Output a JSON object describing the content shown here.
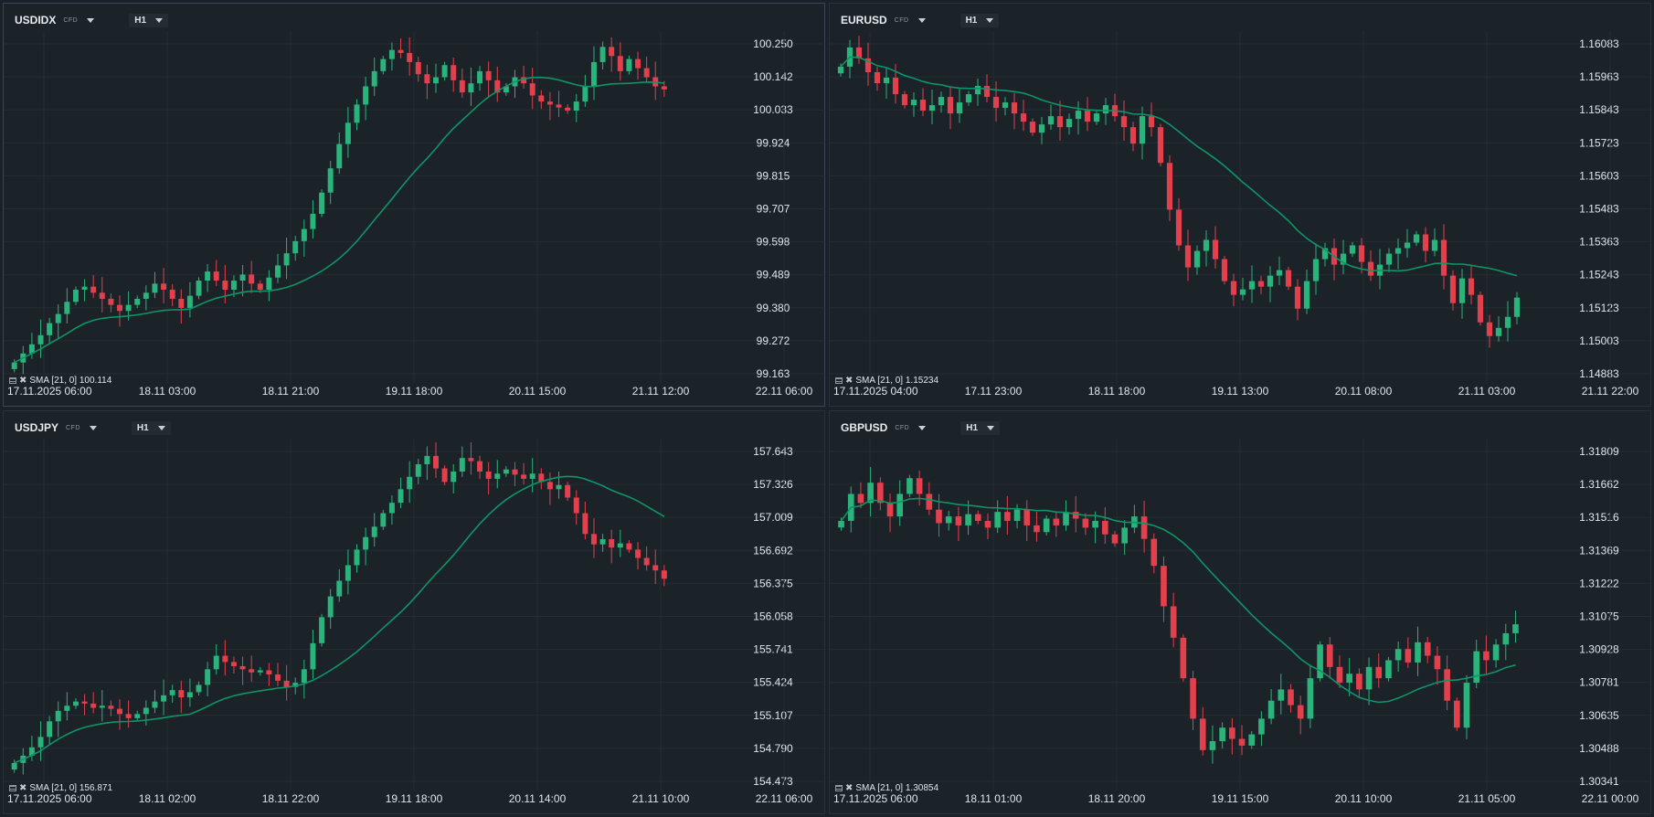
{
  "colors": {
    "up": "#2ab37a",
    "down": "#e3404d",
    "sma": "#0f9468",
    "grid": "#242d34"
  },
  "panels": [
    {
      "symbol": "USDIDX",
      "badge": "CFD",
      "timeframe": "H1",
      "indicator": "SMA [21, 0] 100.114",
      "price_ticks": [
        "100.250",
        "100.142",
        "100.033",
        "99.924",
        "99.815",
        "99.707",
        "99.598",
        "99.489",
        "99.380",
        "99.272",
        "99.163"
      ],
      "time_ticks": [
        "17.11.2025  06:00",
        "18.11  03:00",
        "18.11  21:00",
        "19.11  18:00",
        "20.11  15:00",
        "21.11  12:00",
        "22.11  06:00"
      ],
      "chart_data": {
        "type": "candlestick",
        "ylim": [
          99.163,
          100.25
        ],
        "close": [
          99.2,
          99.23,
          99.26,
          99.29,
          99.33,
          99.36,
          99.4,
          99.44,
          99.45,
          99.43,
          99.41,
          99.39,
          99.37,
          99.39,
          99.41,
          99.43,
          99.46,
          99.44,
          99.41,
          99.38,
          99.42,
          99.47,
          99.5,
          99.47,
          99.44,
          99.47,
          99.49,
          99.46,
          99.44,
          99.48,
          99.52,
          99.56,
          99.6,
          99.64,
          99.69,
          99.76,
          99.84,
          99.92,
          99.99,
          100.05,
          100.11,
          100.16,
          100.2,
          100.23,
          100.22,
          100.19,
          100.15,
          100.12,
          100.14,
          100.18,
          100.13,
          100.09,
          100.12,
          100.16,
          100.13,
          100.09,
          100.11,
          100.14,
          100.12,
          100.08,
          100.06,
          100.05,
          100.04,
          100.03,
          100.06,
          100.11,
          100.19,
          100.24,
          100.21,
          100.16,
          100.2,
          100.17,
          100.14,
          100.11,
          100.1
        ]
      }
    },
    {
      "symbol": "EURUSD",
      "badge": "CFD",
      "timeframe": "H1",
      "indicator": "SMA [21, 0] 1.15234",
      "price_ticks": [
        "1.16083",
        "1.15963",
        "1.15843",
        "1.15723",
        "1.15603",
        "1.15483",
        "1.15363",
        "1.15243",
        "1.15123",
        "1.15003",
        "1.14883"
      ],
      "time_ticks": [
        "17.11.2025  04:00",
        "17.11  23:00",
        "18.11  18:00",
        "19.11  13:00",
        "20.11  08:00",
        "21.11  03:00",
        "21.11  22:00"
      ],
      "chart_data": {
        "type": "candlestick",
        "ylim": [
          1.14883,
          1.16083
        ],
        "close": [
          1.16,
          1.1607,
          1.1603,
          1.1598,
          1.1594,
          1.1596,
          1.159,
          1.1586,
          1.1588,
          1.1584,
          1.1586,
          1.1589,
          1.1583,
          1.1587,
          1.159,
          1.1593,
          1.1589,
          1.1585,
          1.1587,
          1.1583,
          1.158,
          1.1576,
          1.1579,
          1.1582,
          1.1578,
          1.1581,
          1.1584,
          1.158,
          1.1583,
          1.1586,
          1.1582,
          1.1578,
          1.1572,
          1.1582,
          1.1578,
          1.1565,
          1.1548,
          1.1535,
          1.1527,
          1.1533,
          1.1537,
          1.153,
          1.1522,
          1.1517,
          1.1519,
          1.1522,
          1.152,
          1.1524,
          1.1526,
          1.152,
          1.1512,
          1.1522,
          1.153,
          1.1534,
          1.1528,
          1.1532,
          1.1535,
          1.1529,
          1.1524,
          1.1528,
          1.1532,
          1.1534,
          1.1536,
          1.1539,
          1.1533,
          1.1537,
          1.1524,
          1.1514,
          1.1523,
          1.1517,
          1.1507,
          1.1502,
          1.1505,
          1.1509,
          1.1516
        ]
      }
    },
    {
      "symbol": "USDJPY",
      "badge": "CFD",
      "timeframe": "H1",
      "indicator": "SMA [21, 0] 156.871",
      "price_ticks": [
        "157.643",
        "157.326",
        "157.009",
        "156.692",
        "156.375",
        "156.058",
        "155.741",
        "155.424",
        "155.107",
        "154.790",
        "154.473"
      ],
      "time_ticks": [
        "17.11.2025  06:00",
        "18.11  02:00",
        "18.11  22:00",
        "19.11  18:00",
        "20.11  14:00",
        "21.11  10:00",
        "22.11  06:00"
      ],
      "chart_data": {
        "type": "candlestick",
        "ylim": [
          154.473,
          157.643
        ],
        "close": [
          154.65,
          154.72,
          154.8,
          154.9,
          155.05,
          155.15,
          155.2,
          155.24,
          155.22,
          155.18,
          155.2,
          155.17,
          155.12,
          155.08,
          155.12,
          155.18,
          155.24,
          155.3,
          155.35,
          155.28,
          155.33,
          155.4,
          155.55,
          155.68,
          155.62,
          155.58,
          155.55,
          155.52,
          155.54,
          155.5,
          155.44,
          155.38,
          155.42,
          155.55,
          155.8,
          156.05,
          156.25,
          156.4,
          156.55,
          156.7,
          156.82,
          156.92,
          157.05,
          157.15,
          157.28,
          157.4,
          157.52,
          157.6,
          157.48,
          157.35,
          157.45,
          157.58,
          157.55,
          157.45,
          157.38,
          157.43,
          157.47,
          157.42,
          157.38,
          157.43,
          157.35,
          157.28,
          157.32,
          157.2,
          157.05,
          156.85,
          156.75,
          156.8,
          156.72,
          156.76,
          156.7,
          156.62,
          156.55,
          156.5,
          156.42
        ]
      }
    },
    {
      "symbol": "GBPUSD",
      "badge": "CFD",
      "timeframe": "H1",
      "indicator": "SMA [21, 0] 1.30854",
      "price_ticks": [
        "1.31809",
        "1.31662",
        "1.31516",
        "1.31369",
        "1.31222",
        "1.31075",
        "1.30928",
        "1.30781",
        "1.30635",
        "1.30488",
        "1.30341"
      ],
      "time_ticks": [
        "17.11.2025  06:00",
        "18.11  01:00",
        "18.11  20:00",
        "19.11  15:00",
        "20.11  10:00",
        "21.11  05:00",
        "22.11  00:00"
      ],
      "chart_data": {
        "type": "candlestick",
        "ylim": [
          1.30341,
          1.31809
        ],
        "close": [
          1.315,
          1.3162,
          1.3158,
          1.3167,
          1.3158,
          1.3152,
          1.3162,
          1.3169,
          1.3162,
          1.3155,
          1.3149,
          1.3152,
          1.3148,
          1.3153,
          1.315,
          1.3147,
          1.3154,
          1.315,
          1.3155,
          1.3148,
          1.3145,
          1.3151,
          1.3148,
          1.3154,
          1.3151,
          1.3147,
          1.315,
          1.3144,
          1.314,
          1.3147,
          1.3152,
          1.3142,
          1.313,
          1.3112,
          1.3098,
          1.308,
          1.3062,
          1.3048,
          1.3052,
          1.3058,
          1.3053,
          1.305,
          1.3055,
          1.3062,
          1.307,
          1.3075,
          1.3068,
          1.3062,
          1.308,
          1.3095,
          1.3085,
          1.3078,
          1.3082,
          1.3075,
          1.3085,
          1.308,
          1.3088,
          1.3093,
          1.3087,
          1.3096,
          1.309,
          1.3084,
          1.307,
          1.3058,
          1.3078,
          1.3092,
          1.3088,
          1.3095,
          1.31,
          1.3104
        ]
      }
    }
  ]
}
